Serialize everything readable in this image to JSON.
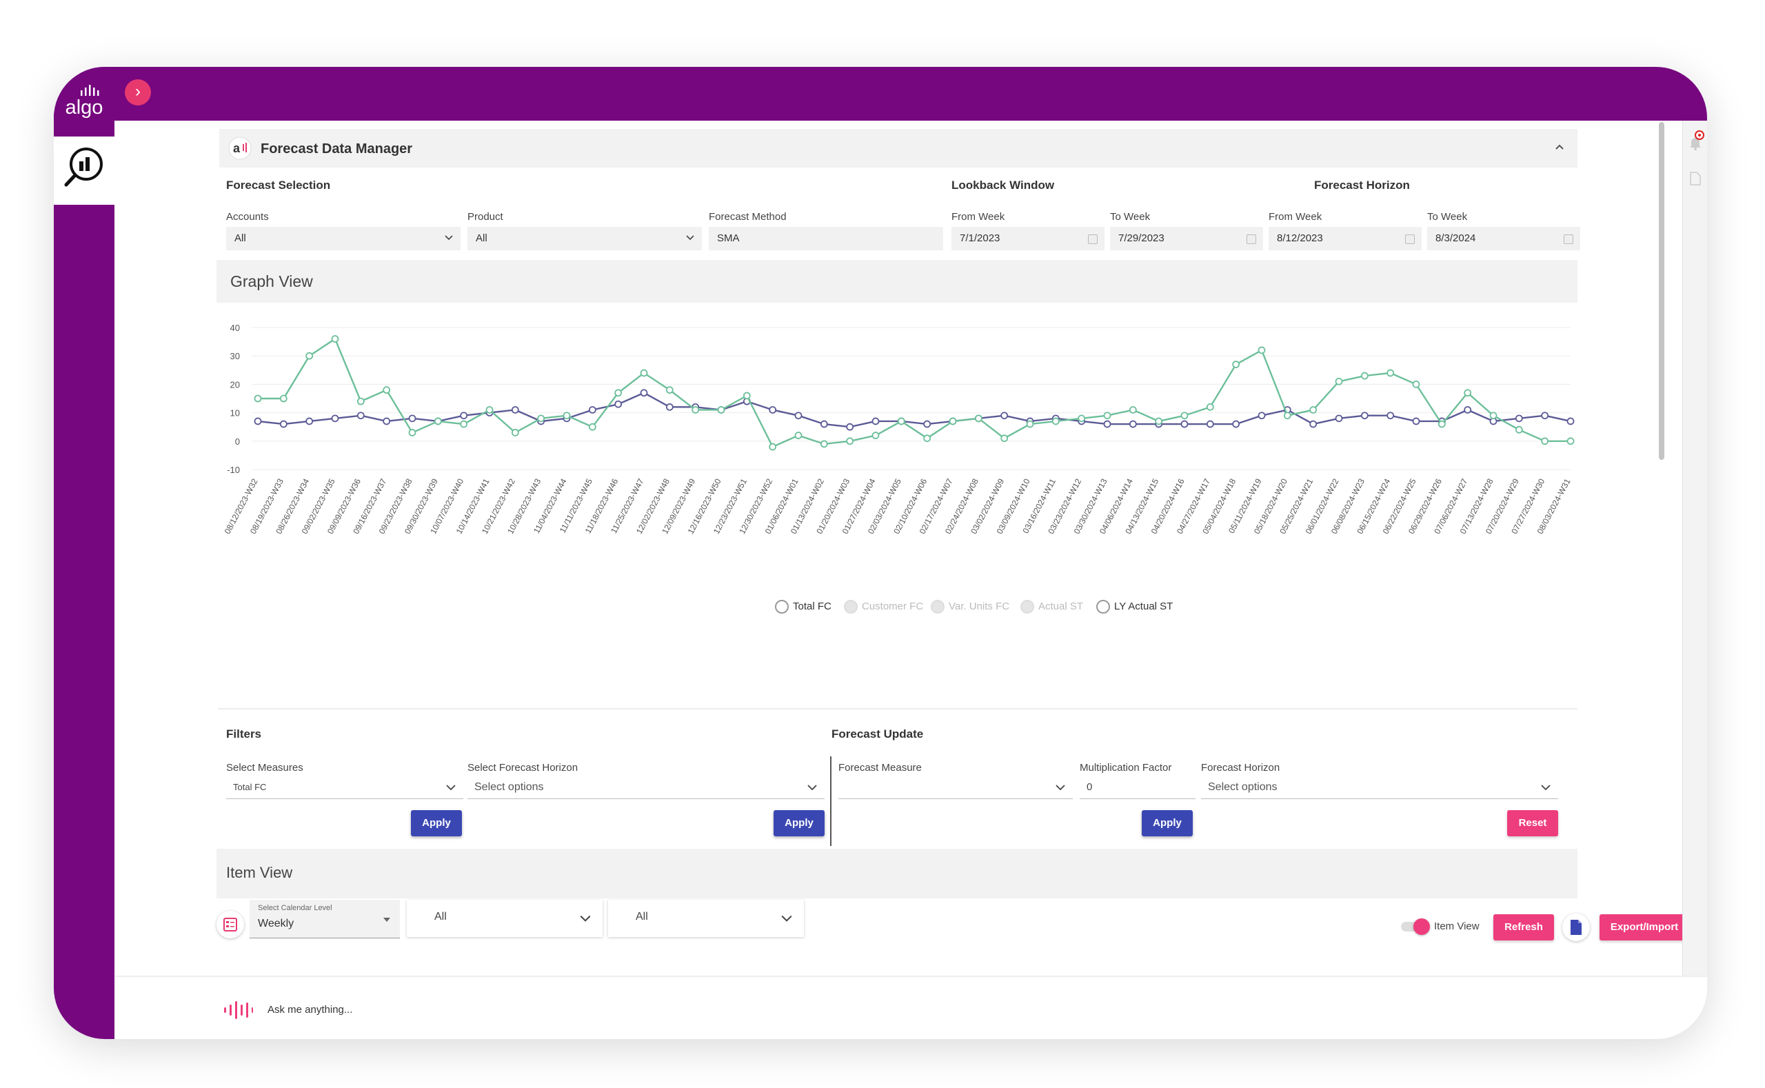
{
  "app": {
    "logo_text": "algo",
    "module_title": "Forecast Data Manager"
  },
  "forecast_selection": {
    "heading": "Forecast Selection",
    "lookback_heading": "Lookback Window",
    "horizon_heading": "Forecast Horizon",
    "accounts": {
      "label": "Accounts",
      "value": "All"
    },
    "product": {
      "label": "Product",
      "value": "All"
    },
    "method": {
      "label": "Forecast Method",
      "value": "SMA"
    },
    "lookback_from": {
      "label": "From Week",
      "value": "7/1/2023"
    },
    "lookback_to": {
      "label": "To Week",
      "value": "7/29/2023"
    },
    "horizon_from": {
      "label": "From Week",
      "value": "8/12/2023"
    },
    "horizon_to": {
      "label": "To Week",
      "value": "8/3/2024"
    }
  },
  "graph_view": {
    "title": "Graph View"
  },
  "chart_data": {
    "type": "line",
    "title": "",
    "xlabel": "",
    "ylabel": "",
    "ylim": [
      -10,
      40
    ],
    "yticks": [
      40,
      30,
      20,
      10,
      0,
      -10
    ],
    "grid": true,
    "legend_position": "bottom",
    "categories": [
      "08/12/2023-W32",
      "08/19/2023-W33",
      "08/26/2023-W34",
      "09/02/2023-W35",
      "09/09/2023-W36",
      "09/16/2023-W37",
      "09/23/2023-W38",
      "09/30/2023-W39",
      "10/07/2023-W40",
      "10/14/2023-W41",
      "10/21/2023-W42",
      "10/28/2023-W43",
      "11/04/2023-W44",
      "11/11/2023-W45",
      "11/18/2023-W46",
      "11/25/2023-W47",
      "12/02/2023-W48",
      "12/09/2023-W49",
      "12/16/2023-W50",
      "12/23/2023-W51",
      "12/30/2023-W52",
      "01/06/2024-W01",
      "01/13/2024-W02",
      "01/20/2024-W03",
      "01/27/2024-W04",
      "02/03/2024-W05",
      "02/10/2024-W06",
      "02/17/2024-W07",
      "02/24/2024-W08",
      "03/02/2024-W09",
      "03/09/2024-W10",
      "03/16/2024-W11",
      "03/23/2024-W12",
      "03/30/2024-W13",
      "04/06/2024-W14",
      "04/13/2024-W15",
      "04/20/2024-W16",
      "04/27/2024-W17",
      "05/04/2024-W18",
      "05/11/2024-W19",
      "05/18/2024-W20",
      "05/25/2024-W21",
      "06/01/2024-W22",
      "06/08/2024-W23",
      "06/15/2024-W24",
      "06/22/2024-W25",
      "06/29/2024-W26",
      "07/06/2024-W27",
      "07/13/2024-W28",
      "07/20/2024-W29",
      "07/27/2024-W30",
      "08/03/2024-W31"
    ],
    "series": [
      {
        "name": "Total FC",
        "color": "#5b5a96",
        "values": [
          7,
          6,
          7,
          8,
          9,
          7,
          8,
          7,
          9,
          10,
          11,
          7,
          8,
          11,
          13,
          17,
          12,
          12,
          11,
          14,
          11,
          9,
          6,
          5,
          7,
          7,
          6,
          7,
          8,
          9,
          7,
          8,
          7,
          6,
          6,
          6,
          6,
          6,
          6,
          9,
          11,
          6,
          8,
          9,
          9,
          7,
          7,
          11,
          7,
          8,
          9,
          7
        ]
      },
      {
        "name": "LY Actual ST",
        "color": "#6cbf9a",
        "values": [
          15,
          15,
          30,
          36,
          14,
          18,
          3,
          7,
          6,
          11,
          3,
          8,
          9,
          5,
          17,
          24,
          18,
          11,
          11,
          16,
          -2,
          2,
          -1,
          0,
          2,
          7,
          1,
          7,
          8,
          1,
          6,
          7,
          8,
          9,
          11,
          7,
          9,
          12,
          27,
          32,
          9,
          11,
          21,
          23,
          24,
          20,
          6,
          17,
          9,
          4,
          0,
          0
        ]
      }
    ],
    "legend": [
      {
        "name": "Total FC",
        "active": true
      },
      {
        "name": "Customer FC",
        "active": false
      },
      {
        "name": "Var. Units FC",
        "active": false
      },
      {
        "name": "Actual ST",
        "active": false
      },
      {
        "name": "LY Actual ST",
        "active": true
      }
    ]
  },
  "filters": {
    "heading": "Filters",
    "measures": {
      "label": "Select Measures",
      "value": "Total FC"
    },
    "horizon": {
      "label": "Select Forecast Horizon",
      "placeholder": "Select options"
    },
    "apply_label": "Apply"
  },
  "forecast_update": {
    "heading": "Forecast Update",
    "measure": {
      "label": "Forecast Measure",
      "value": ""
    },
    "multiplication": {
      "label": "Multiplication Factor",
      "value": "0"
    },
    "horizon": {
      "label": "Forecast Horizon",
      "placeholder": "Select options"
    },
    "apply_label": "Apply",
    "reset_label": "Reset"
  },
  "item_view": {
    "title": "Item View",
    "calendar_label": "Select Calendar Level",
    "calendar_value": "Weekly",
    "dropdown1": "All",
    "dropdown2": "All",
    "toggle_label": "Item View",
    "refresh_label": "Refresh",
    "export_label": "Export/Import"
  },
  "assistant": {
    "placeholder": "Ask me anything..."
  },
  "colors": {
    "brand": "#76077f",
    "accent": "#ee3d7c",
    "primary_button": "#3a47b3"
  }
}
